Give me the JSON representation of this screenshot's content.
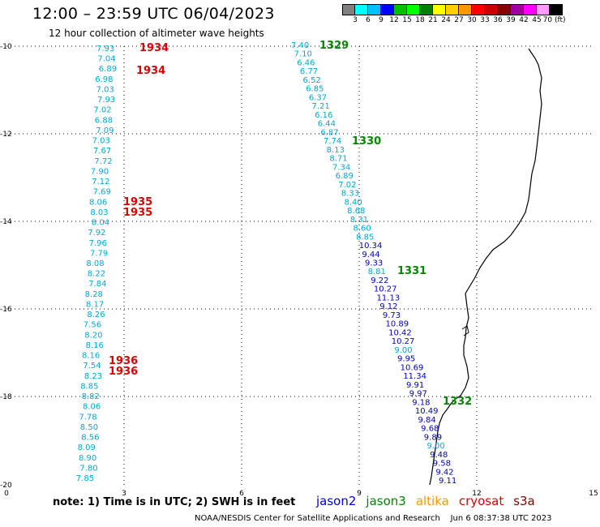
{
  "header": {
    "title": "12:00 – 23:59 UTC 06/04/2023",
    "subtitle": "12 hour collection of altimeter wave heights"
  },
  "legend": {
    "colors": [
      "#808080",
      "#00ffff",
      "#00c0ff",
      "#0000ff",
      "#00c000",
      "#00ff00",
      "#008000",
      "#ffff00",
      "#ffd000",
      "#ff9800",
      "#ff0000",
      "#cc0000",
      "#880000",
      "#a000a0",
      "#ff00ff",
      "#ff99ff",
      "#000000"
    ],
    "labels": [
      "3",
      "6",
      "9",
      "12",
      "15",
      "18",
      "21",
      "24",
      "27",
      "30",
      "33",
      "36",
      "39",
      "42",
      "45",
      "70 (ft)"
    ]
  },
  "map": {
    "y_ticks": [
      "-10",
      "-12",
      "-14",
      "-16",
      "-18",
      "-20"
    ],
    "x_ticks": [
      "0",
      "3",
      "6",
      "9",
      "12",
      "15"
    ],
    "coast_color": "#000000"
  },
  "left_track": {
    "color": "#00aadd",
    "values": [
      "7.93",
      "7.04",
      "6.89",
      "6.98",
      "7.03",
      "7.93",
      "7.02",
      "6.88",
      "7.09",
      "7.03",
      "7.67",
      "7.72",
      "7.90",
      "7.12",
      "7.69",
      "8.06",
      "8.03",
      "8.04",
      "7.92",
      "7.96",
      "7.79",
      "8.08",
      "8.22",
      "7.84",
      "8.28",
      "8.17",
      "8.26",
      "7.56",
      "8.20",
      "8.16",
      "8.16",
      "7.54",
      "8.23",
      "8.85",
      "8.82",
      "8.06",
      "7.78",
      "8.50",
      "8.56",
      "8.09",
      "8.90",
      "7.80",
      "7.85"
    ],
    "time_labels": [
      {
        "text": "1934",
        "color": "#dd0000"
      },
      {
        "text": "1934",
        "color": "#dd0000"
      },
      {
        "text": "1935",
        "color": "#dd0000"
      },
      {
        "text": "1935",
        "color": "#dd0000"
      },
      {
        "text": "1936",
        "color": "#dd0000"
      },
      {
        "text": "1936",
        "color": "#dd0000"
      }
    ]
  },
  "right_track": {
    "values": [
      {
        "v": "7.40",
        "c": "#00aadd"
      },
      {
        "v": "7.10",
        "c": "#00aadd"
      },
      {
        "v": "6.46",
        "c": "#00aadd"
      },
      {
        "v": "6.77",
        "c": "#00aadd"
      },
      {
        "v": "6.52",
        "c": "#00aadd"
      },
      {
        "v": "6.85",
        "c": "#00aadd"
      },
      {
        "v": "6.37",
        "c": "#00aadd"
      },
      {
        "v": "7.21",
        "c": "#00aadd"
      },
      {
        "v": "6.16",
        "c": "#00aadd"
      },
      {
        "v": "6.44",
        "c": "#00aadd"
      },
      {
        "v": "6.87",
        "c": "#00aadd"
      },
      {
        "v": "7.74",
        "c": "#00aadd"
      },
      {
        "v": "8.13",
        "c": "#00aadd"
      },
      {
        "v": "8.71",
        "c": "#00aadd"
      },
      {
        "v": "7.34",
        "c": "#00aadd"
      },
      {
        "v": "6.89",
        "c": "#00aadd"
      },
      {
        "v": "7.02",
        "c": "#00aadd"
      },
      {
        "v": "8.33",
        "c": "#00aadd"
      },
      {
        "v": "8.40",
        "c": "#00aadd"
      },
      {
        "v": "8.68",
        "c": "#00aadd"
      },
      {
        "v": "8.31",
        "c": "#00aadd"
      },
      {
        "v": "8.60",
        "c": "#00aadd"
      },
      {
        "v": "8.85",
        "c": "#00aadd"
      },
      {
        "v": "10.34",
        "c": "#0000cc"
      },
      {
        "v": "9.44",
        "c": "#0000cc"
      },
      {
        "v": "9.33",
        "c": "#0000cc"
      },
      {
        "v": "8.81",
        "c": "#00aadd"
      },
      {
        "v": "9.22",
        "c": "#0000cc"
      },
      {
        "v": "10.27",
        "c": "#0000cc"
      },
      {
        "v": "11.13",
        "c": "#0000cc"
      },
      {
        "v": "9.12",
        "c": "#0000cc"
      },
      {
        "v": "9.73",
        "c": "#0000cc"
      },
      {
        "v": "10.89",
        "c": "#0000cc"
      },
      {
        "v": "10.42",
        "c": "#0000cc"
      },
      {
        "v": "10.27",
        "c": "#0000cc"
      },
      {
        "v": "9.00",
        "c": "#00aadd"
      },
      {
        "v": "9.95",
        "c": "#0000cc"
      },
      {
        "v": "10.69",
        "c": "#0000cc"
      },
      {
        "v": "11.34",
        "c": "#0000cc"
      },
      {
        "v": "9.91",
        "c": "#0000cc"
      },
      {
        "v": "9.97",
        "c": "#0000cc"
      },
      {
        "v": "9.18",
        "c": "#0000cc"
      },
      {
        "v": "10.49",
        "c": "#0000cc"
      },
      {
        "v": "9.84",
        "c": "#0000cc"
      },
      {
        "v": "9.68",
        "c": "#0000cc"
      },
      {
        "v": "9.89",
        "c": "#0000cc"
      },
      {
        "v": "9.00",
        "c": "#00aadd"
      },
      {
        "v": "9.48",
        "c": "#0000cc"
      },
      {
        "v": "9.58",
        "c": "#0000cc"
      },
      {
        "v": "9.42",
        "c": "#0000cc"
      },
      {
        "v": "9.11",
        "c": "#0000cc"
      }
    ],
    "time_labels": [
      {
        "text": "1329",
        "color": "#008800"
      },
      {
        "text": "1330",
        "color": "#008800"
      },
      {
        "text": "1331",
        "color": "#008800"
      },
      {
        "text": "1332",
        "color": "#008800"
      }
    ]
  },
  "footer": {
    "note": "note:  1) Time is in UTC;  2) SWH is in feet",
    "satellites": [
      {
        "name": "jason2",
        "color": "#0000dd"
      },
      {
        "name": "jason3",
        "color": "#008800"
      },
      {
        "name": "altika",
        "color": "#ff9900"
      },
      {
        "name": "cryosat",
        "color": "#dd0000"
      },
      {
        "name": "s3a",
        "color": "#880000"
      }
    ],
    "credit": "NOAA/NESDIS Center for Satellite Applications and Research",
    "timestamp": "Jun  6 08:37:38 UTC 2023"
  }
}
